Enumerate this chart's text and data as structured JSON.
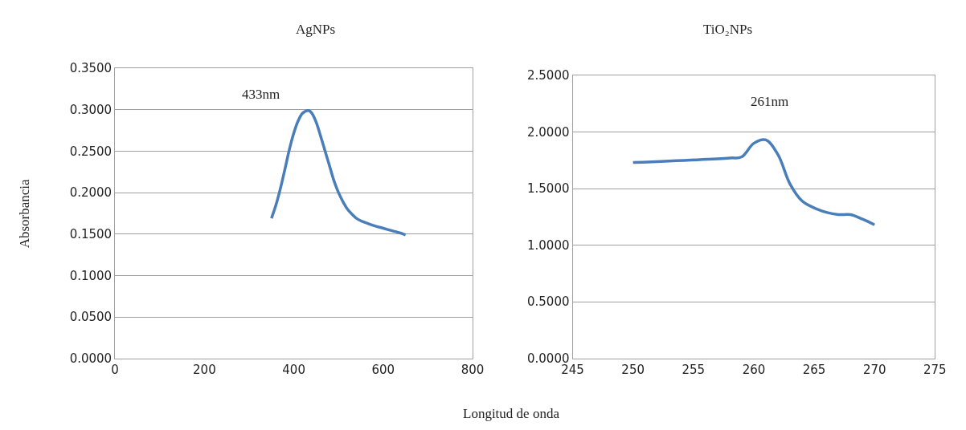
{
  "chart_data": [
    {
      "type": "line",
      "title": "AgNPs",
      "xlabel": "Longitud de onda",
      "ylabel": "Absorbancia",
      "annotations": [
        "433nm"
      ],
      "x": [
        350,
        360,
        370,
        380,
        390,
        400,
        410,
        420,
        433,
        440,
        450,
        460,
        470,
        480,
        490,
        500,
        510,
        520,
        530,
        540,
        550,
        560,
        580,
        600,
        620,
        640,
        650
      ],
      "series": [
        {
          "color": "#4a7ebb",
          "values": [
            0.169,
            0.185,
            0.205,
            0.228,
            0.252,
            0.272,
            0.287,
            0.296,
            0.299,
            0.296,
            0.285,
            0.268,
            0.25,
            0.232,
            0.214,
            0.2,
            0.189,
            0.18,
            0.174,
            0.169,
            0.166,
            0.164,
            0.16,
            0.157,
            0.154,
            0.151,
            0.149
          ]
        }
      ],
      "xlim": [
        0,
        800
      ],
      "xticks": [
        0,
        200,
        400,
        600,
        800
      ],
      "ylim": [
        0,
        0.35
      ],
      "yticks": [
        {
          "value": 0,
          "label": "0.0000"
        },
        {
          "value": 0.05,
          "label": "0.0500"
        },
        {
          "value": 0.1,
          "label": "0.1000"
        },
        {
          "value": 0.15,
          "label": "0.1500"
        },
        {
          "value": 0.2,
          "label": "0.2000"
        },
        {
          "value": 0.25,
          "label": "0.2500"
        },
        {
          "value": 0.3,
          "label": "0.3000"
        },
        {
          "value": 0.35,
          "label": "0.3500"
        }
      ],
      "grid": "y",
      "marker": "none",
      "line_style": "solid"
    },
    {
      "type": "line",
      "title": "TiO₂NPs",
      "annotations": [
        "261nm"
      ],
      "x": [
        250,
        258,
        259,
        260,
        261,
        262,
        263,
        264,
        265,
        266,
        267,
        268,
        269,
        270
      ],
      "series": [
        {
          "color": "#4a7ebb",
          "values": [
            1.73,
            1.77,
            1.78,
            1.9,
            1.93,
            1.8,
            1.54,
            1.39,
            1.33,
            1.29,
            1.27,
            1.27,
            1.23,
            1.18
          ]
        }
      ],
      "xlim": [
        245,
        275
      ],
      "xticks": [
        245,
        250,
        255,
        260,
        265,
        270,
        275
      ],
      "ylim": [
        0,
        2.5
      ],
      "yticks": [
        {
          "value": 0,
          "label": "0.0000"
        },
        {
          "value": 0.5,
          "label": "0.5000"
        },
        {
          "value": 1,
          "label": "1.0000"
        },
        {
          "value": 1.5,
          "label": "1.5000"
        },
        {
          "value": 2,
          "label": "2.0000"
        },
        {
          "value": 2.5,
          "label": "2.5000"
        }
      ],
      "grid": "y",
      "marker": "none",
      "line_style": "solid"
    }
  ]
}
